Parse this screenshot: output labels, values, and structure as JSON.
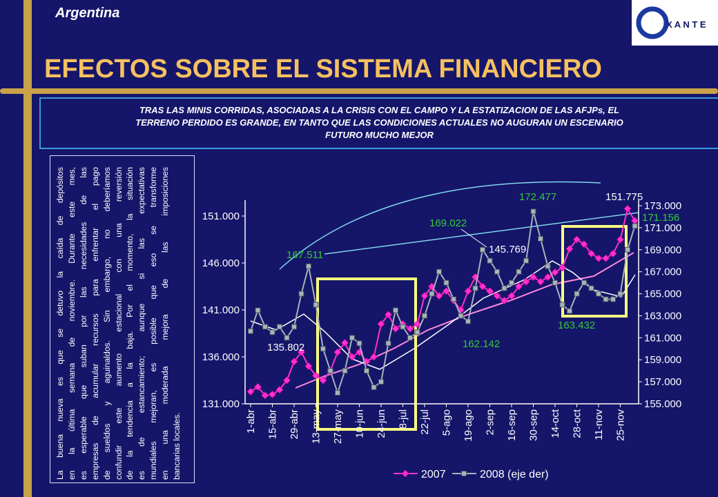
{
  "header": {
    "country": "Argentina",
    "logo": "X A N T E",
    "title": "EFECTOS SOBRE EL SISTEMA FINANCIERO",
    "subtitle_lines": [
      "TRAS LAS MINIS CORRIDAS, ASOCIADAS A LA CRISIS CON EL CAMPO Y LA ESTATIZACION DE LAS AFJPs, EL",
      "TERRENO PERDIDO ES GRANDE, EN TANTO QUE LAS CONDICIONES ACTUALES NO AUGURAN UN ESCENARIO",
      "FUTURO MUCHO MEJOR"
    ]
  },
  "sidebar": {
    "lines": [
      "La buena nueva es que se detuvo la caída de depósitos",
      "en la última semana de noviembre. Durante este mes,",
      "es esperable que suban por las necesidades de las",
      "empresas de acumular recursos para enfrentar el pago",
      "de sueldos y aguinaldos. Sin embargo, no deberíamos",
      "confundir este aumento estacional con una reversión",
      "de la tendencia a la baja. Por el momento, la situación",
      "es de estancamiento; aunque si las expectativas",
      "mundiales mejoran, es posible que eso se transforme",
      "en una moderada mejora de las imposiciones",
      "bancarias locales."
    ]
  },
  "chart_data": {
    "type": "line",
    "categories": [
      "1-abr",
      null,
      null,
      "15-abr",
      null,
      null,
      "29-abr",
      null,
      null,
      "13-may",
      null,
      null,
      "27-may",
      null,
      null,
      "10-jun",
      null,
      null,
      "24-jun",
      null,
      null,
      "8-jul",
      null,
      null,
      "22-jul",
      null,
      null,
      "5-ago",
      null,
      null,
      "19-ago",
      null,
      null,
      "2-sep",
      null,
      null,
      "16-sep",
      null,
      null,
      "30-sep",
      null,
      null,
      "14-oct",
      null,
      null,
      "28-oct",
      null,
      null,
      "11-nov",
      null,
      null,
      "25-nov",
      null,
      null
    ],
    "series": [
      {
        "name": "2007",
        "color": "#ff33cc",
        "marker": "diamond",
        "values": [
          132.3,
          132.8,
          131.9,
          132.0,
          132.5,
          133.5,
          135.5,
          136.5,
          135.0,
          134.0,
          133.5,
          134.5,
          136.5,
          137.5,
          136.0,
          136.5,
          135.5,
          136.0,
          139.5,
          140.5,
          139.0,
          139.5,
          139.0,
          139.5,
          142.5,
          143.5,
          142.5,
          143.0,
          142.0,
          141.0,
          143.0,
          144.5,
          143.5,
          143.0,
          142.5,
          142.0,
          142.5,
          143.5,
          144.0,
          144.5,
          144.0,
          144.5,
          145.0,
          145.5,
          147.5,
          148.5,
          148.0,
          147.0,
          146.5,
          146.5,
          147.0,
          148.5,
          151.775,
          150.5
        ]
      },
      {
        "name": "2008 (eje der)",
        "color": "#a8b4b8",
        "marker": "square",
        "axis": "y2",
        "values": [
          161.6,
          163.5,
          162.0,
          161.5,
          162.0,
          161.0,
          162.0,
          165.0,
          167.5,
          164.0,
          160.0,
          158.0,
          156.0,
          158.0,
          161.0,
          160.5,
          158.0,
          156.5,
          157.0,
          160.5,
          163.5,
          162.0,
          161.0,
          161.5,
          163.0,
          165.0,
          167.0,
          166.0,
          164.5,
          163.0,
          162.5,
          165.5,
          169.0,
          168.0,
          167.0,
          165.5,
          166.0,
          167.0,
          168.0,
          172.477,
          170.0,
          167.5,
          166.0,
          164.0,
          163.432,
          165.0,
          166.0,
          165.5,
          165.0,
          164.5,
          164.5,
          165.0,
          169.0,
          171.156
        ]
      }
    ],
    "ylim": [
      131,
      152.1
    ],
    "yticks": [
      {
        "value": 131,
        "label": "131.000"
      },
      {
        "value": 136,
        "label": "136.000"
      },
      {
        "value": 141,
        "label": "141.000"
      },
      {
        "value": 146,
        "label": "146.000"
      },
      {
        "value": 151,
        "label": "151.000"
      }
    ],
    "y2lim": [
      155,
      173
    ],
    "y2ticks": [
      {
        "value": 155,
        "label": "155.000"
      },
      {
        "value": 157,
        "label": "157.000"
      },
      {
        "value": 159,
        "label": "159.000"
      },
      {
        "value": 161,
        "label": "161.000"
      },
      {
        "value": 163,
        "label": "163.000"
      },
      {
        "value": 165,
        "label": "165.000"
      },
      {
        "value": 167,
        "label": "167.000"
      },
      {
        "value": 169,
        "label": "169.000"
      },
      {
        "value": 171,
        "label": "171.000"
      },
      {
        "value": 173,
        "label": "173.000"
      }
    ],
    "annotations": [
      {
        "text": "135.802",
        "color": "#ffffff"
      },
      {
        "text": "167.511",
        "color": "#33cc33"
      },
      {
        "text": "169.022",
        "color": "#33cc33"
      },
      {
        "text": "145.769",
        "color": "#ffffff"
      },
      {
        "text": "172.477",
        "color": "#33cc33"
      },
      {
        "text": "151.775",
        "color": "#ffffff"
      },
      {
        "text": "171.156",
        "color": "#33cc33"
      },
      {
        "text": "162.142",
        "color": "#33cc33"
      },
      {
        "text": "163.432",
        "color": "#33cc33"
      }
    ],
    "grid": false
  }
}
